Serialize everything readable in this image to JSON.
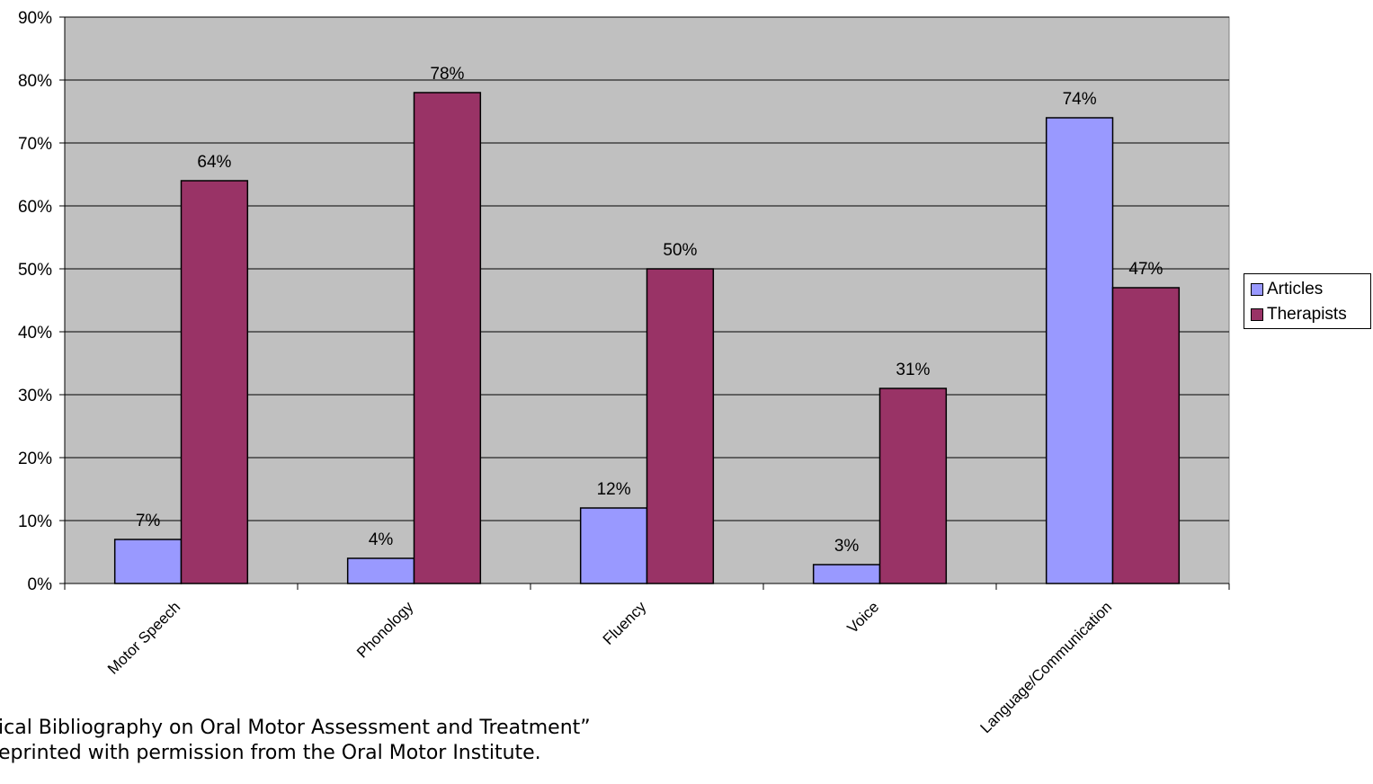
{
  "chart_data": {
    "type": "bar",
    "categories": [
      "Motor Speech",
      "Phonology",
      "Fluency",
      "Voice",
      "Language/Communication"
    ],
    "series": [
      {
        "name": "Articles",
        "values": [
          7,
          4,
          12,
          3,
          74
        ],
        "color": "#9999ff"
      },
      {
        "name": "Therapists",
        "values": [
          64,
          78,
          50,
          31,
          47
        ],
        "color": "#993366"
      }
    ],
    "data_labels": [
      [
        "7%",
        "4%",
        "12%",
        "3%",
        "74%"
      ],
      [
        "64%",
        "78%",
        "50%",
        "31%",
        "47%"
      ]
    ],
    "ylim": [
      0,
      90
    ],
    "yticks": [
      0,
      10,
      20,
      30,
      40,
      50,
      60,
      70,
      80,
      90
    ],
    "ytick_labels": [
      "0%",
      "10%",
      "20%",
      "30%",
      "40%",
      "50%",
      "60%",
      "70%",
      "80%",
      "90%"
    ],
    "grid": true,
    "plot_background": "#c0c0c0",
    "legend_position": "right"
  },
  "caption": {
    "line1": "ical Bibliography on Oral Motor Assessment and Treatment”",
    "line2": "eprinted with permission from the Oral Motor Institute."
  }
}
